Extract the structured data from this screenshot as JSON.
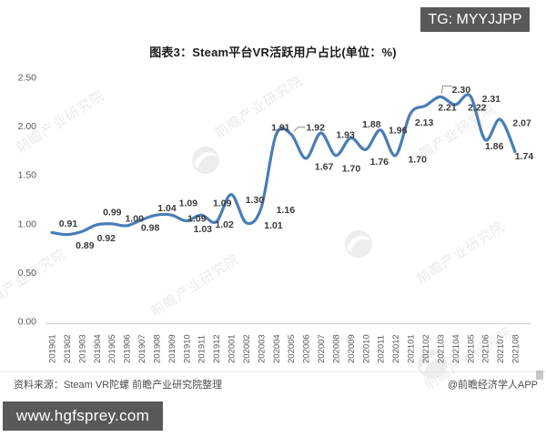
{
  "page": {
    "background": "#ffffff"
  },
  "overlay": {
    "tg_badge": "TG: MYYJJPP",
    "url_badge": "www.hgfsprey.com",
    "badge_color": "#58595b"
  },
  "title": "图表3：Steam平台VR活跃用户占比(单位：%)",
  "watermark": {
    "text": "前瞻产业研究院"
  },
  "footer": {
    "source": "资料来源：Steam VR陀螺 前瞻产业研究院整理",
    "credit": "@前瞻经济学人APP"
  },
  "chart_data": {
    "type": "line",
    "title": "图表3：Steam平台VR活跃用户占比(单位：%)",
    "unit": "%",
    "categories": [
      "201901",
      "201902",
      "201903",
      "201904",
      "201905",
      "201906",
      "201907",
      "201908",
      "201909",
      "201910",
      "201911",
      "201912",
      "202001",
      "202002",
      "202003",
      "202004",
      "202005",
      "202006",
      "202007",
      "202008",
      "202009",
      "202010",
      "202011",
      "202012",
      "202101",
      "202102",
      "202103",
      "202104",
      "202105",
      "202106",
      "202107",
      "202108"
    ],
    "values": [
      0.91,
      0.89,
      0.92,
      0.99,
      1.0,
      0.98,
      1.04,
      1.09,
      1.09,
      1.03,
      1.09,
      1.02,
      1.3,
      1.01,
      1.16,
      1.91,
      1.92,
      1.67,
      1.93,
      1.7,
      1.88,
      1.76,
      1.96,
      1.7,
      2.13,
      2.21,
      2.3,
      2.22,
      2.31,
      1.86,
      2.07,
      1.74
    ],
    "ylim": [
      0,
      2.5
    ],
    "yticks": [
      "0.00",
      "0.50",
      "1.00",
      "1.50",
      "2.00",
      "2.50"
    ],
    "grid": false,
    "legend": "none",
    "smooth": true,
    "data_labels": true,
    "decimals": 2,
    "line_color": "#4a7db6",
    "label_color": "#3a3a3a",
    "axis_text_color": "#595959",
    "axis_line_color": "#d6d6d6"
  }
}
